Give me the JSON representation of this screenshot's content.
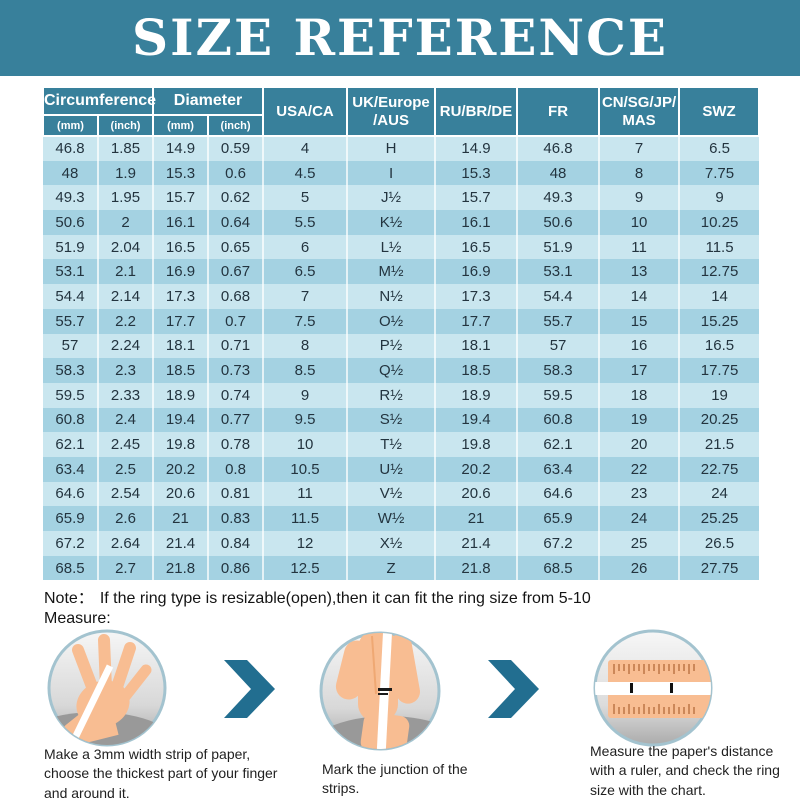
{
  "title": "SIZE REFERENCE",
  "colors": {
    "banner_teal": "#38809B",
    "row_light": "#C9E6EF",
    "row_dark": "#A4D2E2",
    "chevron_teal": "#226E90",
    "cell_text": "#23343F"
  },
  "table": {
    "header": {
      "circumference": "Circumference",
      "diameter": "Diameter",
      "mm": "(mm)",
      "inch": "(inch)",
      "usa": "USA/CA",
      "uk_line1": "UK/Europe",
      "uk_line2": "/AUS",
      "ru": "RU/BR/DE",
      "fr": "FR",
      "cn_line1": "CN/SG/JP/",
      "cn_line2": "MAS",
      "swz": "SWZ"
    },
    "rows": [
      [
        "46.8",
        "1.85",
        "14.9",
        "0.59",
        "4",
        "H",
        "14.9",
        "46.8",
        "7",
        "6.5"
      ],
      [
        "48",
        "1.9",
        "15.3",
        "0.6",
        "4.5",
        "I",
        "15.3",
        "48",
        "8",
        "7.75"
      ],
      [
        "49.3",
        "1.95",
        "15.7",
        "0.62",
        "5",
        "J½",
        "15.7",
        "49.3",
        "9",
        "9"
      ],
      [
        "50.6",
        "2",
        "16.1",
        "0.64",
        "5.5",
        "K½",
        "16.1",
        "50.6",
        "10",
        "10.25"
      ],
      [
        "51.9",
        "2.04",
        "16.5",
        "0.65",
        "6",
        "L½",
        "16.5",
        "51.9",
        "11",
        "11.5"
      ],
      [
        "53.1",
        "2.1",
        "16.9",
        "0.67",
        "6.5",
        "M½",
        "16.9",
        "53.1",
        "13",
        "12.75"
      ],
      [
        "54.4",
        "2.14",
        "17.3",
        "0.68",
        "7",
        "N½",
        "17.3",
        "54.4",
        "14",
        "14"
      ],
      [
        "55.7",
        "2.2",
        "17.7",
        "0.7",
        "7.5",
        "O½",
        "17.7",
        "55.7",
        "15",
        "15.25"
      ],
      [
        "57",
        "2.24",
        "18.1",
        "0.71",
        "8",
        "P½",
        "18.1",
        "57",
        "16",
        "16.5"
      ],
      [
        "58.3",
        "2.3",
        "18.5",
        "0.73",
        "8.5",
        "Q½",
        "18.5",
        "58.3",
        "17",
        "17.75"
      ],
      [
        "59.5",
        "2.33",
        "18.9",
        "0.74",
        "9",
        "R½",
        "18.9",
        "59.5",
        "18",
        "19"
      ],
      [
        "60.8",
        "2.4",
        "19.4",
        "0.77",
        "9.5",
        "S½",
        "19.4",
        "60.8",
        "19",
        "20.25"
      ],
      [
        "62.1",
        "2.45",
        "19.8",
        "0.78",
        "10",
        "T½",
        "19.8",
        "62.1",
        "20",
        "21.5"
      ],
      [
        "63.4",
        "2.5",
        "20.2",
        "0.8",
        "10.5",
        "U½",
        "20.2",
        "63.4",
        "22",
        "22.75"
      ],
      [
        "64.6",
        "2.54",
        "20.6",
        "0.81",
        "11",
        "V½",
        "20.6",
        "64.6",
        "23",
        "24"
      ],
      [
        "65.9",
        "2.6",
        "21",
        "0.83",
        "11.5",
        "W½",
        "21",
        "65.9",
        "24",
        "25.25"
      ],
      [
        "67.2",
        "2.64",
        "21.4",
        "0.84",
        "12",
        "X½",
        "21.4",
        "67.2",
        "25",
        "26.5"
      ],
      [
        "68.5",
        "2.7",
        "21.8",
        "0.86",
        "12.5",
        "Z",
        "21.8",
        "68.5",
        "26",
        "27.75"
      ]
    ]
  },
  "note": {
    "label": "Note：",
    "text": "If the ring type is resizable(open),then it can fit the ring size from 5-10"
  },
  "measure_label": "Measure:",
  "steps": [
    {
      "caption": "Make a 3mm width strip of paper,\nchoose the thickest part of your finger\nand around it."
    },
    {
      "caption": "Mark the junction of the\nstrips."
    },
    {
      "caption": "Measure the paper's distance\nwith a ruler, and check the ring\nsize with the chart."
    }
  ]
}
